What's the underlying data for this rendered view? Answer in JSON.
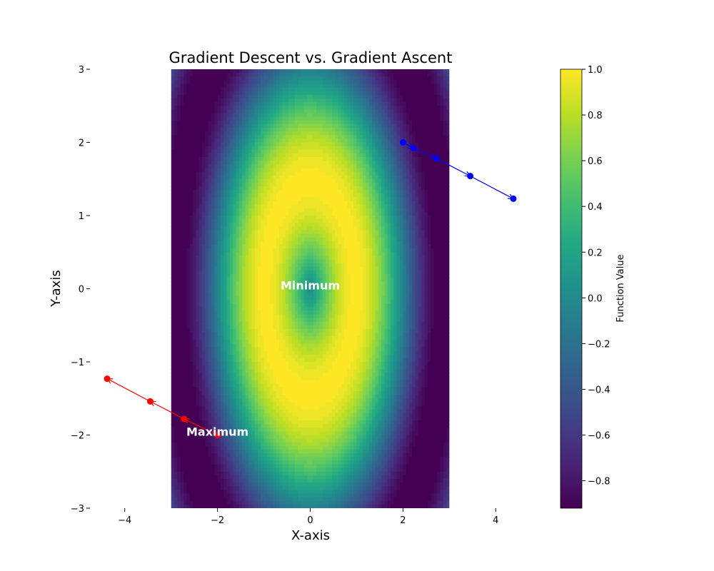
{
  "chart_data": {
    "type": "contour",
    "title": "Gradient Descent vs. Gradient Ascent",
    "xlabel": "X-axis",
    "ylabel": "Y-axis",
    "xlim": [
      -4.75,
      4.75
    ],
    "ylim": [
      -3,
      3
    ],
    "x_ticks": [
      -4,
      -2,
      0,
      2,
      4
    ],
    "y_ticks": [
      -3,
      -2,
      -1,
      0,
      1,
      2,
      3
    ],
    "surface_extent": {
      "x": [
        -3,
        3
      ],
      "y": [
        -3,
        3
      ]
    },
    "colormap": "viridis",
    "colorbar": {
      "label": "Function Value",
      "range": [
        -0.92,
        1.0
      ],
      "ticks": [
        -0.8,
        -0.6,
        -0.4,
        -0.2,
        0.0,
        0.2,
        0.4,
        0.6,
        0.8,
        1.0
      ],
      "tick_labels": [
        "−0.8",
        "−0.6",
        "−0.4",
        "−0.2",
        "0.0",
        "0.2",
        "0.4",
        "0.6",
        "0.8",
        "1.0"
      ]
    },
    "annotations": [
      {
        "text": "Minimum",
        "x": 0,
        "y": 0.05
      },
      {
        "text": "Maximum",
        "x": -2.0,
        "y": -1.95
      }
    ],
    "series": [
      {
        "color": "#0000ff",
        "points": [
          [
            2.0,
            2.0
          ],
          [
            2.23,
            1.92
          ],
          [
            2.72,
            1.78
          ],
          [
            3.45,
            1.54
          ],
          [
            4.38,
            1.23
          ]
        ]
      },
      {
        "color": "#ff0000",
        "points": [
          [
            -2.0,
            -2.0
          ],
          [
            -2.72,
            -1.78
          ],
          [
            -3.45,
            -1.54
          ],
          [
            -4.38,
            -1.23
          ]
        ]
      }
    ]
  }
}
